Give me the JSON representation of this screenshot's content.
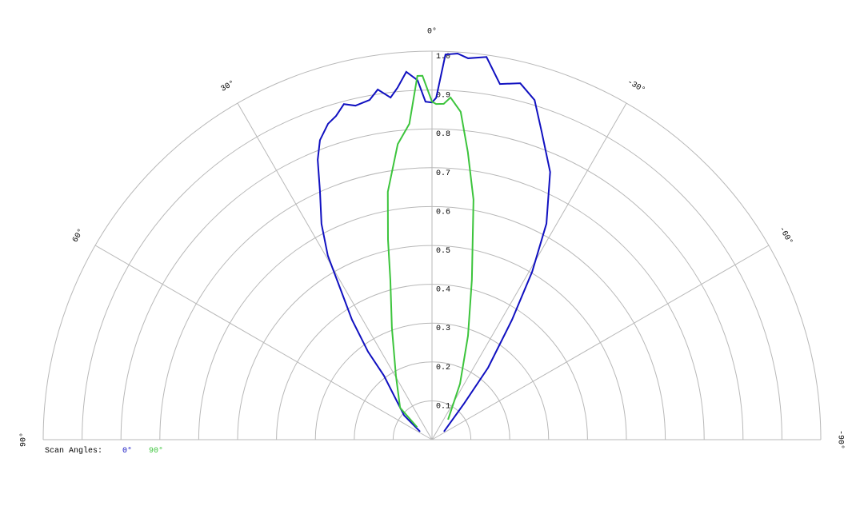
{
  "chart_data": {
    "type": "polar",
    "rlim": [
      0,
      1
    ],
    "rticks": [
      0.1,
      0.2,
      0.3,
      0.4,
      0.5,
      0.6,
      0.7,
      0.8,
      0.9,
      {
        "value": 1,
        "label": "1.0"
      }
    ],
    "thetaticks": [
      {
        "value": 90,
        "label": "90°"
      },
      {
        "value": 60,
        "label": "60°"
      },
      {
        "value": 30,
        "label": "30°"
      },
      {
        "value": 0,
        "label": "0°"
      },
      {
        "value": -30,
        "label": "-30°"
      },
      {
        "value": -60,
        "label": "-60°"
      },
      {
        "value": -90,
        "label": "-90°"
      }
    ],
    "legend_title": "Scan Angles:",
    "series": [
      {
        "name": "0°",
        "color": "#1010c0",
        "theta": [
          56,
          49,
          36.9,
          36,
          33.7,
          31.2,
          29.5,
          27.1,
          24.3,
          22.2,
          20.5,
          18.2,
          16.5,
          14.7,
          12.9,
          10.4,
          8.8,
          6.9,
          5.6,
          4.0,
          2.3,
          1.1,
          0,
          -0.7,
          -2.0,
          -3.8,
          -5.4,
          -8.1,
          -10.8,
          -13.9,
          -16.8,
          -19.6,
          -23.8,
          -27.9,
          -30.8,
          -33.7,
          -37.9,
          -41.6,
          -56
        ],
        "values": [
          0.037,
          0.095,
          0.206,
          0.28,
          0.371,
          0.457,
          0.544,
          0.624,
          0.7,
          0.778,
          0.823,
          0.856,
          0.869,
          0.893,
          0.882,
          0.889,
          0.912,
          0.887,
          0.91,
          0.949,
          0.926,
          0.87,
          0.868,
          0.88,
          0.992,
          0.996,
          0.986,
          0.995,
          0.932,
          0.945,
          0.913,
          0.841,
          0.753,
          0.629,
          0.503,
          0.371,
          0.235,
          0.124,
          0.037
        ]
      },
      {
        "name": "90°",
        "color": "#3cc43c",
        "theta": [
          50,
          45,
          29.4,
          19.7,
          14.6,
          12.4,
          10.1,
          6.6,
          4.1,
          2.3,
          1.5,
          0,
          -0.7,
          -2.0,
          -3.1,
          -5.0,
          -7.1,
          -9.8,
          -14.0,
          -19.1,
          -26.6,
          -38.7
        ],
        "values": [
          0.05,
          0.116,
          0.189,
          0.306,
          0.425,
          0.527,
          0.648,
          0.766,
          0.815,
          0.937,
          0.937,
          0.87,
          0.864,
          0.865,
          0.882,
          0.847,
          0.746,
          0.627,
          0.424,
          0.283,
          0.161,
          0.066
        ]
      }
    ]
  }
}
